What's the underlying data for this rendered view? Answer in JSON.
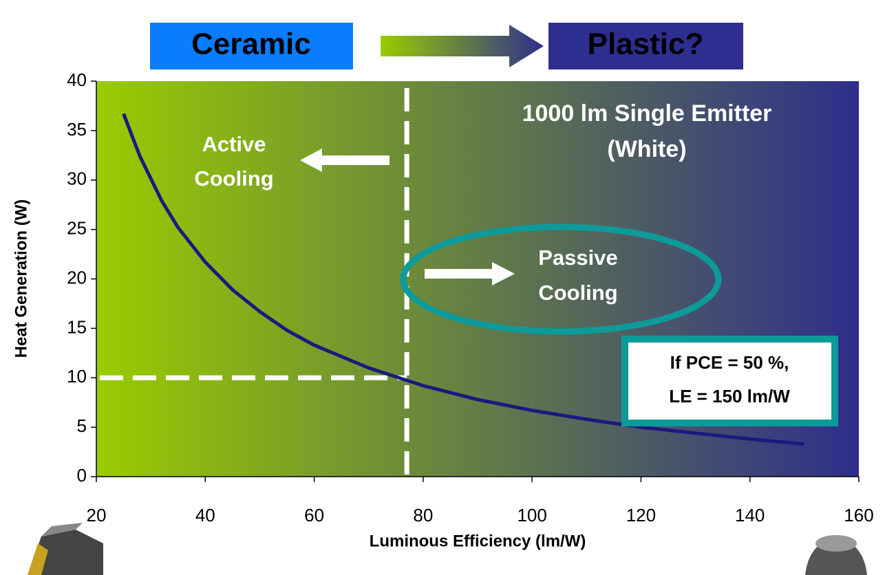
{
  "chart_data": {
    "type": "line",
    "header_labels": [
      "Ceramic",
      "Plastic?"
    ],
    "xlabel": "Luminous Efficiency (lm/W)",
    "ylabel": "Heat Generation (W)",
    "x": [
      25,
      28,
      32,
      35,
      40,
      45,
      50,
      55,
      60,
      70,
      80,
      90,
      100,
      110,
      120,
      130,
      140,
      150
    ],
    "series": [
      {
        "color": "#1a1a80",
        "values": [
          36.7,
          32.4,
          27.9,
          25.2,
          21.7,
          18.9,
          16.7,
          14.8,
          13.3,
          11.0,
          9.2,
          7.8,
          6.7,
          5.8,
          5.0,
          4.4,
          3.8,
          3.3
        ]
      }
    ],
    "xlim": [
      20,
      160
    ],
    "ylim": [
      0,
      40
    ],
    "xticks": [
      20,
      40,
      60,
      80,
      100,
      120,
      140,
      160
    ],
    "yticks": [
      0,
      5,
      10,
      15,
      20,
      25,
      30,
      35,
      40
    ],
    "dashed_lines": {
      "x": 77,
      "y": 10
    },
    "annotations": [
      [
        "1000 lm Single Emitter",
        "(White)"
      ],
      [
        "Active",
        "Cooling"
      ],
      [
        "Passive",
        "Cooling"
      ],
      [
        "If PCE = 50 %,",
        "LE = 150 lm/W"
      ]
    ],
    "background_colors": [
      "#99cc00",
      "#2e2e8c"
    ]
  }
}
